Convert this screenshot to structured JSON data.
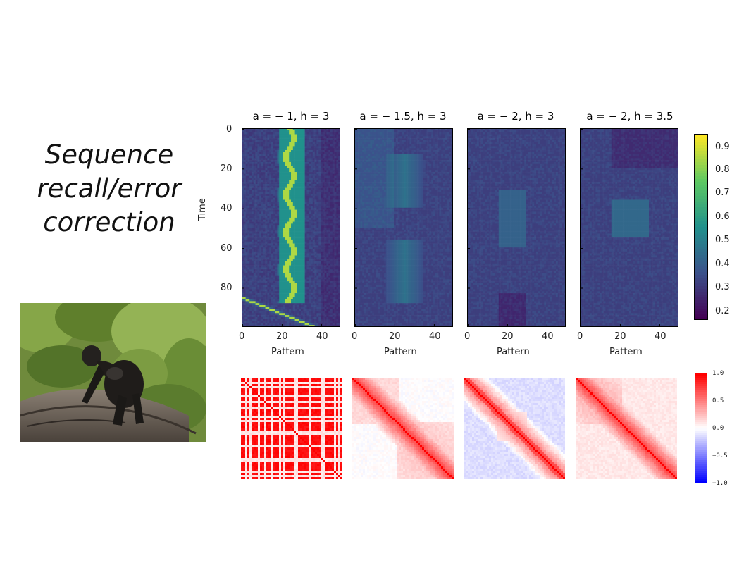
{
  "slide": {
    "title_lines": [
      "Sequence",
      "recall/error",
      "correction"
    ]
  },
  "photo": {
    "description_icon": "gorilla-photo"
  },
  "colors": {
    "viridis": [
      "#440154",
      "#3b528b",
      "#21918c",
      "#5ec962",
      "#fde725"
    ],
    "bwr_neg": "#0000ff",
    "bwr_mid": "#ffffff",
    "bwr_pos": "#ff0000"
  },
  "chart_data": [
    {
      "type": "heatmap",
      "title": "a = − 1, h = 3",
      "xlabel": "Pattern",
      "ylabel": "Time",
      "xticks": [
        0,
        20,
        40
      ],
      "yticks": [
        0,
        20,
        40,
        60,
        80
      ],
      "xlim": [
        0,
        49
      ],
      "ylim": [
        99,
        0
      ],
      "colormap": "viridis",
      "description": "Retrieval stays locked on patterns 20–30 for most of the run"
    },
    {
      "type": "heatmap",
      "title": "a = − 1.5, h = 3",
      "xlabel": "Pattern",
      "xticks": [
        0,
        20,
        40
      ],
      "yticks": [
        0,
        20,
        40,
        60,
        80
      ],
      "colormap": "viridis"
    },
    {
      "type": "heatmap",
      "title": "a = − 2, h = 3",
      "xlabel": "Pattern",
      "xticks": [
        0,
        20,
        40
      ],
      "yticks": [
        0,
        20,
        40,
        60,
        80
      ],
      "colormap": "viridis"
    },
    {
      "type": "heatmap",
      "title": "a = − 2, h = 3.5",
      "xlabel": "Pattern",
      "xticks": [
        0,
        20,
        40
      ],
      "yticks": [
        0,
        20,
        40,
        60,
        80
      ],
      "colormap": "viridis"
    }
  ],
  "colorbar_top": {
    "ticks": [
      "0.9",
      "0.8",
      "0.7",
      "0.6",
      "0.5",
      "0.4",
      "0.3",
      "0.2"
    ],
    "range": [
      0.15,
      0.95
    ]
  },
  "colorbar_bottom": {
    "ticks": [
      "1.0",
      "0.5",
      "0.0",
      "−0.5",
      "−1.0"
    ],
    "range": [
      -1.0,
      1.0
    ]
  },
  "correlation_matrices": {
    "count": 4,
    "colormap": "bwr"
  }
}
